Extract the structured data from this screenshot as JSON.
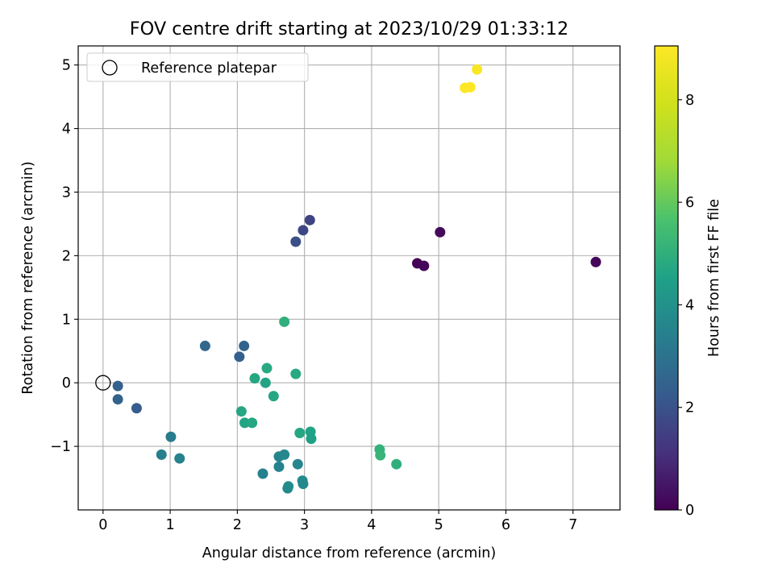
{
  "chart_data": {
    "type": "scatter",
    "title": "FOV centre drift starting at 2023/10/29 01:33:12",
    "xlabel": "Angular distance from reference (arcmin)",
    "ylabel": "Rotation from reference (arcmin)",
    "xlim": [
      -0.37,
      7.7
    ],
    "ylim": [
      -2.0,
      5.3
    ],
    "xticks": [
      0,
      1,
      2,
      3,
      4,
      5,
      6,
      7
    ],
    "xtick_labels": [
      "0",
      "1",
      "2",
      "3",
      "4",
      "5",
      "6",
      "7"
    ],
    "yticks": [
      -1,
      0,
      1,
      2,
      3,
      4,
      5
    ],
    "ytick_labels": [
      "−1",
      "0",
      "1",
      "2",
      "3",
      "4",
      "5"
    ],
    "grid": true,
    "legend": {
      "position": "top-left",
      "entries": [
        "Reference platepar"
      ]
    },
    "reference_point": {
      "x": 0,
      "y": 0,
      "label": "Reference platepar"
    },
    "colorbar": {
      "label": "Hours from first FF file",
      "colormap": "viridis",
      "range": [
        0,
        9.05
      ],
      "ticks": [
        0,
        2,
        4,
        6,
        8
      ],
      "tick_labels": [
        "0",
        "2",
        "4",
        "6",
        "8"
      ]
    },
    "points": [
      {
        "x": 4.68,
        "y": 1.88,
        "hours": 0.05
      },
      {
        "x": 4.78,
        "y": 1.84,
        "hours": 0.1
      },
      {
        "x": 5.02,
        "y": 2.37,
        "hours": 0.2
      },
      {
        "x": 7.34,
        "y": 1.9,
        "hours": 0.15
      },
      {
        "x": 2.87,
        "y": 2.22,
        "hours": 1.9
      },
      {
        "x": 2.98,
        "y": 2.4,
        "hours": 1.7
      },
      {
        "x": 3.08,
        "y": 2.56,
        "hours": 1.6
      },
      {
        "x": 0.22,
        "y": -0.05,
        "hours": 2.4
      },
      {
        "x": 0.22,
        "y": -0.26,
        "hours": 2.5
      },
      {
        "x": 0.5,
        "y": -0.4,
        "hours": 2.3
      },
      {
        "x": 1.52,
        "y": 0.58,
        "hours": 2.6
      },
      {
        "x": 2.03,
        "y": 0.41,
        "hours": 2.4
      },
      {
        "x": 2.1,
        "y": 0.58,
        "hours": 2.5
      },
      {
        "x": 1.01,
        "y": -0.85,
        "hours": 3.3
      },
      {
        "x": 0.87,
        "y": -1.13,
        "hours": 3.4
      },
      {
        "x": 1.14,
        "y": -1.19,
        "hours": 3.5
      },
      {
        "x": 2.38,
        "y": -1.43,
        "hours": 3.4
      },
      {
        "x": 2.62,
        "y": -1.16,
        "hours": 3.6
      },
      {
        "x": 2.7,
        "y": -1.13,
        "hours": 3.7
      },
      {
        "x": 2.62,
        "y": -1.32,
        "hours": 3.5
      },
      {
        "x": 2.75,
        "y": -1.66,
        "hours": 3.7
      },
      {
        "x": 2.76,
        "y": -1.63,
        "hours": 3.8
      },
      {
        "x": 2.9,
        "y": -1.28,
        "hours": 3.6
      },
      {
        "x": 2.97,
        "y": -1.54,
        "hours": 3.8
      },
      {
        "x": 2.98,
        "y": -1.59,
        "hours": 3.7
      },
      {
        "x": 2.26,
        "y": 0.07,
        "hours": 4.7
      },
      {
        "x": 2.44,
        "y": 0.23,
        "hours": 4.8
      },
      {
        "x": 2.42,
        "y": 0.0,
        "hours": 4.6
      },
      {
        "x": 2.54,
        "y": -0.21,
        "hours": 4.7
      },
      {
        "x": 2.87,
        "y": 0.14,
        "hours": 4.8
      },
      {
        "x": 2.7,
        "y": 0.96,
        "hours": 5.0
      },
      {
        "x": 2.06,
        "y": -0.45,
        "hours": 4.7
      },
      {
        "x": 2.11,
        "y": -0.63,
        "hours": 4.6
      },
      {
        "x": 2.22,
        "y": -0.63,
        "hours": 4.7
      },
      {
        "x": 2.93,
        "y": -0.79,
        "hours": 4.7
      },
      {
        "x": 3.09,
        "y": -0.77,
        "hours": 4.6
      },
      {
        "x": 3.1,
        "y": -0.88,
        "hours": 4.5
      },
      {
        "x": 4.12,
        "y": -1.05,
        "hours": 5.1
      },
      {
        "x": 4.13,
        "y": -1.14,
        "hours": 5.2
      },
      {
        "x": 4.37,
        "y": -1.28,
        "hours": 5.0
      },
      {
        "x": 5.39,
        "y": 4.64,
        "hours": 9.0
      },
      {
        "x": 5.47,
        "y": 4.65,
        "hours": 9.05
      },
      {
        "x": 5.57,
        "y": 4.93,
        "hours": 8.95
      }
    ]
  }
}
